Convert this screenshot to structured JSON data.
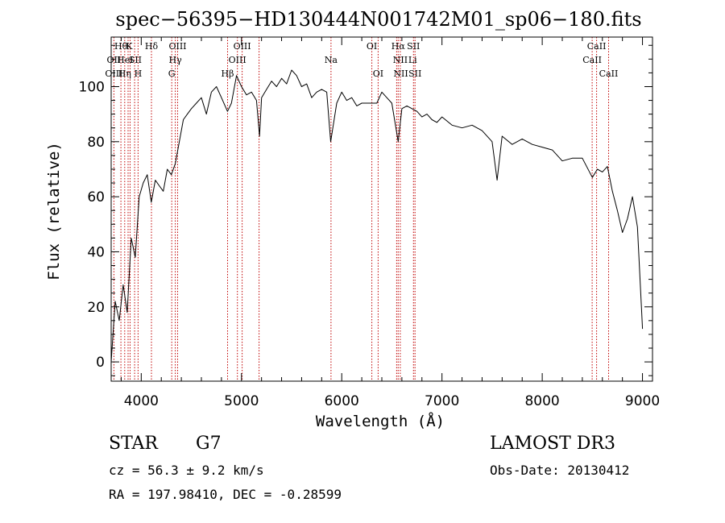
{
  "chart_data": {
    "type": "line",
    "title": "spec−56395−HD130444N001742M01_sp06−180.fits",
    "xlabel": "Wavelength (Å)",
    "ylabel": "Flux (relative)",
    "xlim": [
      3700,
      9100
    ],
    "ylim": [
      -7,
      118
    ],
    "xticks": [
      4000,
      5000,
      6000,
      7000,
      8000,
      9000
    ],
    "yticks": [
      0,
      20,
      40,
      60,
      80,
      100
    ],
    "grid": false,
    "series": [
      {
        "name": "flux",
        "x": [
          3700,
          3740,
          3780,
          3820,
          3860,
          3900,
          3940,
          3980,
          4020,
          4060,
          4100,
          4140,
          4180,
          4220,
          4260,
          4300,
          4340,
          4380,
          4420,
          4460,
          4500,
          4550,
          4600,
          4650,
          4700,
          4750,
          4800,
          4860,
          4900,
          4950,
          5000,
          5050,
          5100,
          5150,
          5180,
          5200,
          5250,
          5300,
          5350,
          5400,
          5450,
          5500,
          5550,
          5600,
          5650,
          5700,
          5750,
          5800,
          5850,
          5890,
          5950,
          6000,
          6050,
          6100,
          6150,
          6200,
          6250,
          6300,
          6350,
          6400,
          6450,
          6500,
          6563,
          6600,
          6650,
          6700,
          6750,
          6800,
          6850,
          6900,
          6950,
          7000,
          7100,
          7200,
          7300,
          7400,
          7500,
          7550,
          7600,
          7700,
          7800,
          7900,
          8000,
          8100,
          8200,
          8300,
          8400,
          8500,
          8550,
          8600,
          8650,
          8700,
          8750,
          8800,
          8850,
          8900,
          8950,
          9000
        ],
        "y": [
          0,
          22,
          15,
          28,
          18,
          45,
          38,
          60,
          65,
          68,
          58,
          66,
          64,
          62,
          70,
          68,
          72,
          80,
          88,
          90,
          92,
          94,
          96,
          90,
          98,
          100,
          96,
          91,
          94,
          104,
          100,
          97,
          98,
          95,
          82,
          96,
          99,
          102,
          100,
          103,
          101,
          106,
          104,
          100,
          101,
          96,
          98,
          99,
          98,
          80,
          94,
          98,
          95,
          96,
          93,
          94,
          94,
          94,
          94,
          98,
          96,
          94,
          80,
          92,
          93,
          92,
          91,
          89,
          90,
          88,
          87,
          89,
          86,
          85,
          86,
          84,
          80,
          66,
          82,
          79,
          81,
          79,
          78,
          77,
          73,
          74,
          74,
          67,
          70,
          69,
          71,
          62,
          55,
          47,
          52,
          60,
          49,
          12
        ]
      }
    ],
    "annotations": [
      {
        "label": "Hθ",
        "x": 3797,
        "row": 1
      },
      {
        "label": "OII",
        "x": 3727,
        "row": 2
      },
      {
        "label": "OIII",
        "x": 3727,
        "row": 3
      },
      {
        "label": "K",
        "x": 3880,
        "row": 1
      },
      {
        "label": "HeI",
        "x": 3840,
        "row": 2
      },
      {
        "label": "Hη",
        "x": 3835,
        "row": 3
      },
      {
        "label": "Hδ",
        "x": 4102,
        "row": 1
      },
      {
        "label": "SII",
        "x": 3940,
        "row": 2
      },
      {
        "label": "H",
        "x": 3968,
        "row": 3
      },
      {
        "label": "OIII",
        "x": 4363,
        "row": 1
      },
      {
        "label": "Hγ",
        "x": 4340,
        "row": 2
      },
      {
        "label": "G",
        "x": 4304,
        "row": 3
      },
      {
        "label": "OIII",
        "x": 5007,
        "row": 1
      },
      {
        "label": "OIII",
        "x": 4959,
        "row": 2
      },
      {
        "label": "Hβ",
        "x": 4861,
        "row": 3
      },
      {
        "label": "Na",
        "x": 5893,
        "row": 2
      },
      {
        "label": "OI",
        "x": 6300,
        "row": 1
      },
      {
        "label": "OI",
        "x": 6363,
        "row": 3
      },
      {
        "label": "Hα",
        "x": 6563,
        "row": 1
      },
      {
        "label": "SII",
        "x": 6716,
        "row": 1
      },
      {
        "label": "NII",
        "x": 6584,
        "row": 2
      },
      {
        "label": "Li",
        "x": 6708,
        "row": 2
      },
      {
        "label": "NII",
        "x": 6590,
        "row": 3
      },
      {
        "label": "SII",
        "x": 6731,
        "row": 3
      },
      {
        "label": "CaII",
        "x": 8542,
        "row": 1
      },
      {
        "label": "CaII",
        "x": 8498,
        "row": 2
      },
      {
        "label": "CaII",
        "x": 8662,
        "row": 3
      }
    ],
    "line_markers": [
      3727,
      3797,
      3835,
      3869,
      3889,
      3934,
      3968,
      4102,
      4304,
      4340,
      4363,
      4861,
      4959,
      5007,
      5175,
      5893,
      6300,
      6363,
      6548,
      6563,
      6584,
      6716,
      6731,
      8498,
      8542,
      8662
    ]
  },
  "info": {
    "object_type": "STAR",
    "subclass": "G7",
    "survey": "LAMOST DR3",
    "cz_text": "cz = 56.3 ± 9.2 km/s",
    "obs_date_text": "Obs-Date: 20130412",
    "coords_text": "RA = 197.98410, DEC =  -0.28599"
  },
  "colors": {
    "marker": "#c00000",
    "axis": "#000000",
    "spectrum": "#000000"
  }
}
